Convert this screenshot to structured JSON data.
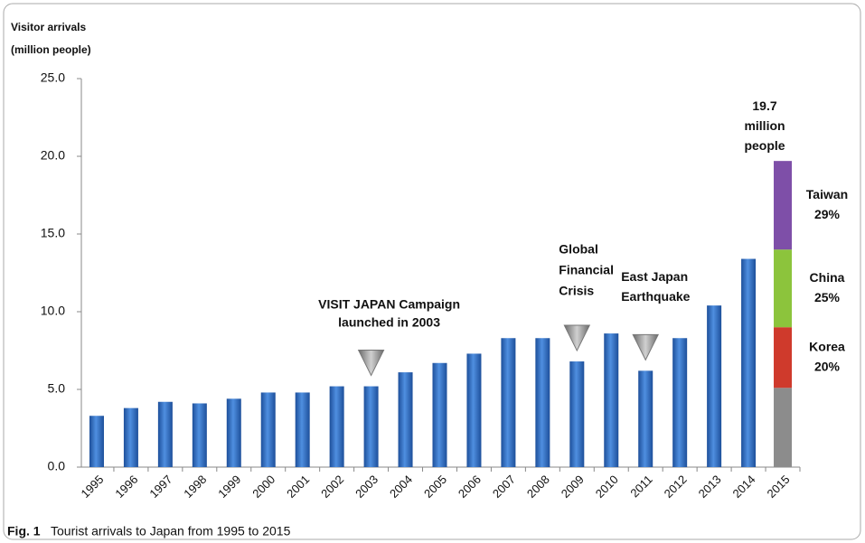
{
  "chart_data": {
    "type": "bar",
    "y_label": [
      "Visitor arrivals",
      "(million   people)"
    ],
    "categories": [
      "1995",
      "1996",
      "1997",
      "1998",
      "1999",
      "2000",
      "2001",
      "2002",
      "2003",
      "2004",
      "2005",
      "2006",
      "2007",
      "2008",
      "2009",
      "2010",
      "2011",
      "2012",
      "2013",
      "2014",
      "2015"
    ],
    "values": [
      3.3,
      3.8,
      4.2,
      4.1,
      4.4,
      4.8,
      4.8,
      5.2,
      5.2,
      6.1,
      6.7,
      7.3,
      8.3,
      8.3,
      6.8,
      8.6,
      6.2,
      8.3,
      10.4,
      13.4,
      null
    ],
    "color": "#2f6cc0",
    "stack": {
      "category": "2015",
      "total": 19.7,
      "total_unit": [
        "million",
        "people"
      ],
      "segments": [
        {
          "value": 5.1,
          "color": "#8c8c8c"
        },
        {
          "name": "Korea",
          "share": "20%",
          "value": 3.9,
          "color": "#cf3a2c"
        },
        {
          "name": "China",
          "share": "25%",
          "value": 5.0,
          "color": "#8cc43c"
        },
        {
          "name": "Taiwan",
          "share": "29%",
          "value": 5.7,
          "color": "#7e4fa8"
        }
      ]
    },
    "annotations": [
      {
        "lines": [
          "VISIT JAPAN Campaign",
          "launched in 2003"
        ],
        "at": "2003",
        "color": "#e0201c"
      },
      {
        "lines": [
          "Global",
          "Financial",
          "Crisis"
        ],
        "at": "2009",
        "color": "#111111"
      },
      {
        "lines": [
          "East Japan",
          "Earthquake"
        ],
        "at": "2011",
        "color": "#111111"
      }
    ],
    "ylim": [
      0,
      25
    ],
    "yticks": [
      {
        "value": 0,
        "label": "0.0"
      },
      {
        "value": 5,
        "label": "5.0"
      },
      {
        "value": 10,
        "label": "10.0"
      },
      {
        "value": 15,
        "label": "15.0"
      },
      {
        "value": 20,
        "label": "20.0"
      },
      {
        "value": 25,
        "label": "25.0"
      }
    ],
    "caption": {
      "label": "Fig. 1",
      "text": "Tourist arrivals to Japan from 1995 to 2015"
    }
  }
}
